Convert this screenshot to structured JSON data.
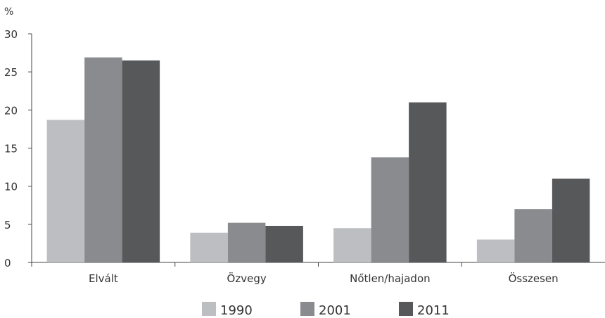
{
  "chart_data": {
    "type": "bar",
    "ylabel": "%",
    "ylim": [
      0,
      30
    ],
    "yticks": [
      0,
      5,
      10,
      15,
      20,
      25,
      30
    ],
    "categories": [
      "Elvált",
      "Özvegy",
      "Nőtlen/hajadon",
      "Összesen"
    ],
    "series": [
      {
        "name": "1990",
        "color": "#bdbec1",
        "values": [
          18.7,
          3.9,
          4.5,
          3.0
        ]
      },
      {
        "name": "2001",
        "color": "#8a8b8e",
        "values": [
          26.9,
          5.2,
          13.8,
          7.0
        ]
      },
      {
        "name": "2011",
        "color": "#575859",
        "values": [
          26.5,
          4.8,
          21.0,
          11.0
        ]
      }
    ],
    "legend_position": "bottom-center",
    "grid": false
  }
}
